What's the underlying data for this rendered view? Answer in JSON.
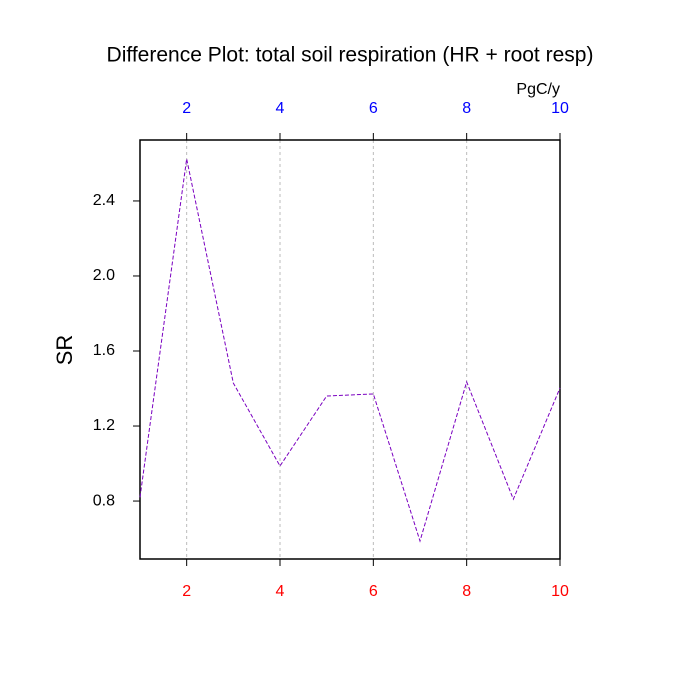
{
  "chart_data": {
    "type": "line",
    "title": "Difference Plot: total soil respiration (HR + root resp)",
    "ylabel": "SR",
    "units": "PgC/y",
    "x": [
      1,
      2,
      3,
      4,
      5,
      6,
      7,
      8,
      9,
      10
    ],
    "series": [
      {
        "color": "#7a00c0",
        "values": [
          0.82,
          2.624,
          1.429,
          0.987,
          1.36,
          1.371,
          0.587,
          1.435,
          0.81,
          1.403
        ]
      }
    ],
    "xlim": [
      1,
      10
    ],
    "xticks": [
      2,
      4,
      6,
      8,
      10
    ],
    "xtick_color": "#ff0000",
    "x2lim": [
      1,
      10
    ],
    "x2ticks": [
      2,
      4,
      6,
      8,
      10
    ],
    "x2tick_color": "#0000ff",
    "ylim": [
      0.491,
      2.725
    ],
    "yticks": [
      0.8,
      1.2,
      1.6,
      {
        "value": 2,
        "label": "2.0"
      },
      2.4
    ],
    "grid": true
  }
}
